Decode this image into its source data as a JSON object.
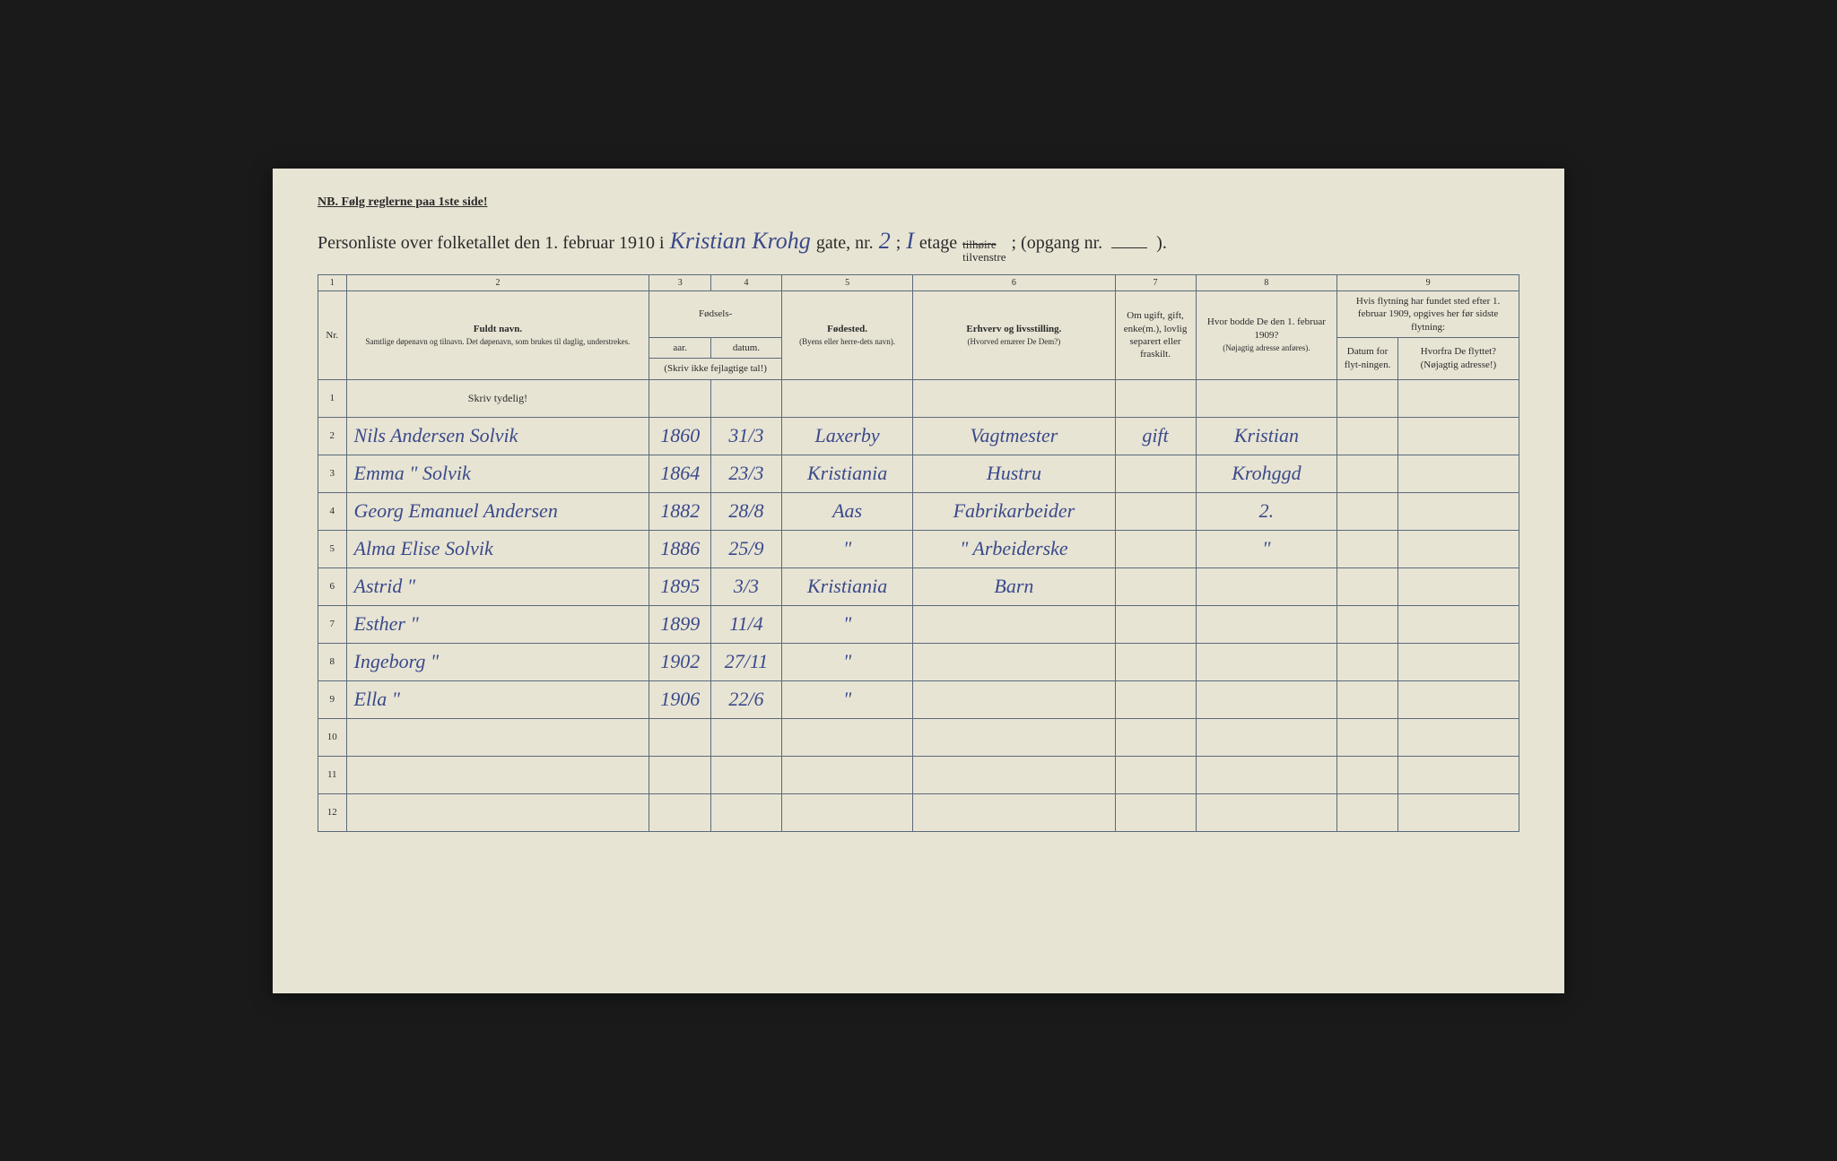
{
  "header": {
    "notice": "NB. Følg reglerne paa 1ste side!",
    "title_prefix": "Personliste over folketallet den 1. februar 1910 i",
    "street_name": "Kristian Krohg",
    "gate_label": "gate, nr.",
    "house_nr": "2",
    "floor_prefix": ";",
    "floor_nr": "I",
    "etage_label": "etage",
    "tilhoire": "tilhøire",
    "tilvenstre": "tilvenstre",
    "opgang_label": "; (opgang nr.",
    "opgang_nr": "",
    "closing": ")."
  },
  "columns": {
    "nums": [
      "1",
      "2",
      "3",
      "4",
      "5",
      "6",
      "7",
      "8",
      "9"
    ],
    "nr_label": "Nr.",
    "fullname": {
      "title": "Fuldt navn.",
      "sub": "Samtlige døpenavn og tilnavn. Det døpenavn, som brukes til daglig, understrekes."
    },
    "birth": {
      "title": "Fødsels-",
      "year": "aar.",
      "date": "datum.",
      "note": "(Skriv ikke fejlagtige tal!)"
    },
    "birthplace": {
      "title": "Fødested.",
      "sub": "(Byens eller herre-dets navn)."
    },
    "occupation": {
      "title": "Erhverv og livsstilling.",
      "sub": "(Hvorved ernærer De Dem?)"
    },
    "marital": {
      "title": "Om ugift, gift, enke(m.), lovlig separert eller fraskilt."
    },
    "prev_address": {
      "title": "Hvor bodde De den 1. februar 1909?",
      "sub": "(Nøjagtig adresse anføres)."
    },
    "moved": {
      "title": "Hvis flytning har fundet sted efter 1. februar 1909, opgives her før sidste flytning:",
      "date_label": "Datum for flyt-ningen.",
      "from_label": "Hvorfra De flyttet? (Nøjagtig adresse!)"
    },
    "skriv_tydelig": "Skriv tydelig!"
  },
  "rows": [
    {
      "nr": "1",
      "name": "",
      "year": "",
      "date": "",
      "place": "",
      "occupation": "",
      "marital": "",
      "address": "",
      "move_date": "",
      "move_from": ""
    },
    {
      "nr": "2",
      "name": "Nils Andersen Solvik",
      "year": "1860",
      "date": "31/3",
      "place": "Laxerby",
      "occupation": "Vagtmester",
      "marital": "gift",
      "address": "Kristian",
      "move_date": "",
      "move_from": ""
    },
    {
      "nr": "3",
      "name": "Emma  \"  Solvik",
      "year": "1864",
      "date": "23/3",
      "place": "Kristiania",
      "occupation": "Hustru",
      "marital": "",
      "address": "Krohggd",
      "move_date": "",
      "move_from": ""
    },
    {
      "nr": "4",
      "name": "Georg Emanuel Andersen",
      "year": "1882",
      "date": "28/8",
      "place": "Aas",
      "occupation": "Fabrikarbeider",
      "marital": "",
      "address": "2.",
      "move_date": "",
      "move_from": ""
    },
    {
      "nr": "5",
      "name": "Alma Elise Solvik",
      "year": "1886",
      "date": "25/9",
      "place": "\"",
      "occupation": "\" Arbeiderske",
      "marital": "",
      "address": "\"",
      "move_date": "",
      "move_from": ""
    },
    {
      "nr": "6",
      "name": "Astrid        \"",
      "year": "1895",
      "date": "3/3",
      "place": "Kristiania",
      "occupation": "Barn",
      "marital": "",
      "address": "",
      "move_date": "",
      "move_from": ""
    },
    {
      "nr": "7",
      "name": "Esther        \"",
      "year": "1899",
      "date": "11/4",
      "place": "\"",
      "occupation": "",
      "marital": "",
      "address": "",
      "move_date": "",
      "move_from": ""
    },
    {
      "nr": "8",
      "name": "Ingeborg      \"",
      "year": "1902",
      "date": "27/11",
      "place": "\"",
      "occupation": "",
      "marital": "",
      "address": "",
      "move_date": "",
      "move_from": ""
    },
    {
      "nr": "9",
      "name": "Ella          \"",
      "year": "1906",
      "date": "22/6",
      "place": "\"",
      "occupation": "",
      "marital": "",
      "address": "",
      "move_date": "",
      "move_from": ""
    },
    {
      "nr": "10",
      "name": "",
      "year": "",
      "date": "",
      "place": "",
      "occupation": "",
      "marital": "",
      "address": "",
      "move_date": "",
      "move_from": ""
    },
    {
      "nr": "11",
      "name": "",
      "year": "",
      "date": "",
      "place": "",
      "occupation": "",
      "marital": "",
      "address": "",
      "move_date": "",
      "move_from": ""
    },
    {
      "nr": "12",
      "name": "",
      "year": "",
      "date": "",
      "place": "",
      "occupation": "",
      "marital": "",
      "address": "",
      "move_date": "",
      "move_from": ""
    }
  ],
  "styling": {
    "paper_bg": "#e8e4d4",
    "ink_color": "#2a2a2a",
    "handwriting_color": "#3a4a8a",
    "border_color": "#5a6a7a",
    "handwriting_font": "Brush Script MT",
    "print_font": "Georgia"
  }
}
